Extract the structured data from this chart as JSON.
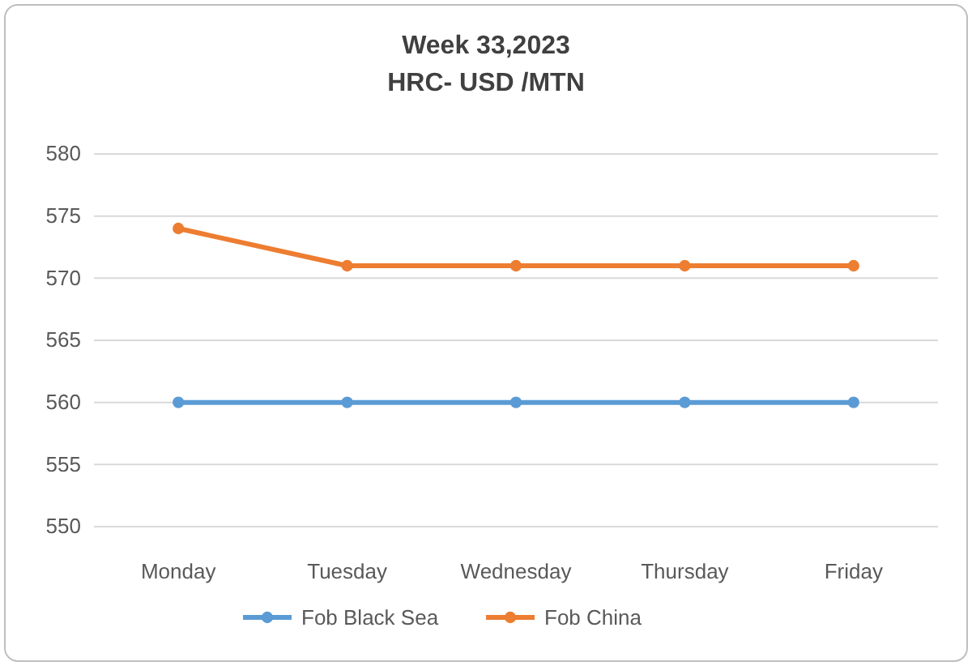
{
  "chart_data": {
    "type": "line",
    "title": "Week 33,2023",
    "subtitle": "HRC- USD /MTN",
    "categories": [
      "Monday",
      "Tuesday",
      "Wednesday",
      "Thursday",
      "Friday"
    ],
    "series": [
      {
        "name": "Fob Black Sea",
        "color": "#5b9bd5",
        "values": [
          560,
          560,
          560,
          560,
          560
        ]
      },
      {
        "name": "Fob China",
        "color": "#ed7d31",
        "values": [
          574,
          571,
          571,
          571,
          571
        ]
      }
    ],
    "ylim": [
      550,
      580
    ],
    "yticks": [
      550,
      555,
      560,
      565,
      570,
      575,
      580
    ],
    "grid": "y",
    "legend": "bottom",
    "marker": "circle",
    "line_style": "solid"
  }
}
